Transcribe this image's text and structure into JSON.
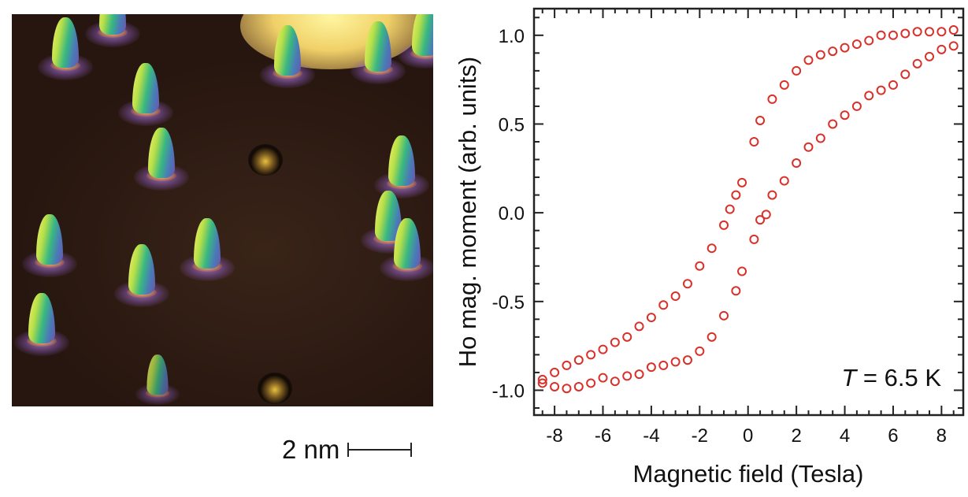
{
  "stm_image": {
    "scale_bar_label": "2 nm"
  },
  "chart_data": {
    "type": "scatter",
    "title": "",
    "xlabel": "Magnetic field (Tesla)",
    "ylabel": "Ho mag. moment (arb. units)",
    "xlim": [
      -8.85,
      8.9
    ],
    "ylim": [
      -1.14,
      1.15
    ],
    "xticks": [
      -8,
      -6,
      -4,
      -2,
      0,
      2,
      4,
      6,
      8
    ],
    "xtick_labels": [
      "-8",
      "-6",
      "-4",
      "-2",
      "0",
      "2",
      "4",
      "6",
      "8"
    ],
    "yticks": [
      -1.0,
      -0.5,
      0.0,
      0.5,
      1.0
    ],
    "ytick_labels": [
      "-1.0",
      "-0.5",
      "0.0",
      "0.5",
      "1.0"
    ],
    "grid": false,
    "marker": "open-circle",
    "color": "#d9302a",
    "annotation": {
      "italic": "T",
      "text": " = 6.5 K"
    },
    "series": [
      {
        "x": [
          8.5,
          8,
          7.5,
          7,
          6.5,
          6,
          5.5,
          5,
          4.5,
          4,
          3.5,
          3,
          2.5,
          2,
          1.5,
          1,
          0.5,
          0.25,
          -0.25,
          -0.5,
          -0.75,
          -1,
          -1.5,
          -2,
          -2.5,
          -3,
          -3.5,
          -4,
          -4.5,
          -5,
          -5.5,
          -6,
          -6.5,
          -7,
          -7.5,
          -8,
          -8.5
        ],
        "y": [
          1.03,
          1.02,
          1.02,
          1.02,
          1.01,
          1.0,
          1.0,
          0.97,
          0.95,
          0.93,
          0.91,
          0.89,
          0.86,
          0.8,
          0.72,
          0.64,
          0.52,
          0.4,
          0.17,
          0.1,
          0.02,
          -0.07,
          -0.2,
          -0.3,
          -0.4,
          -0.47,
          -0.52,
          -0.59,
          -0.64,
          -0.7,
          -0.73,
          -0.77,
          -0.8,
          -0.83,
          -0.86,
          -0.9,
          -0.94
        ]
      },
      {
        "x": [
          -8.5,
          -8,
          -7.5,
          -7,
          -6.5,
          -6,
          -5.5,
          -5,
          -4.5,
          -4,
          -3.5,
          -3,
          -2.5,
          -2,
          -1.5,
          -1,
          -0.5,
          -0.25,
          0.25,
          0.5,
          0.75,
          1,
          1.5,
          2,
          2.5,
          3,
          3.5,
          4,
          4.5,
          5,
          5.5,
          6,
          6.5,
          7,
          7.5,
          8,
          8.5
        ],
        "y": [
          -0.96,
          -0.98,
          -0.99,
          -0.98,
          -0.96,
          -0.93,
          -0.95,
          -0.92,
          -0.91,
          -0.87,
          -0.86,
          -0.84,
          -0.83,
          -0.78,
          -0.7,
          -0.58,
          -0.44,
          -0.33,
          -0.15,
          -0.04,
          -0.01,
          0.1,
          0.18,
          0.28,
          0.37,
          0.42,
          0.5,
          0.55,
          0.6,
          0.66,
          0.69,
          0.72,
          0.78,
          0.84,
          0.88,
          0.92,
          0.94
        ]
      }
    ]
  }
}
